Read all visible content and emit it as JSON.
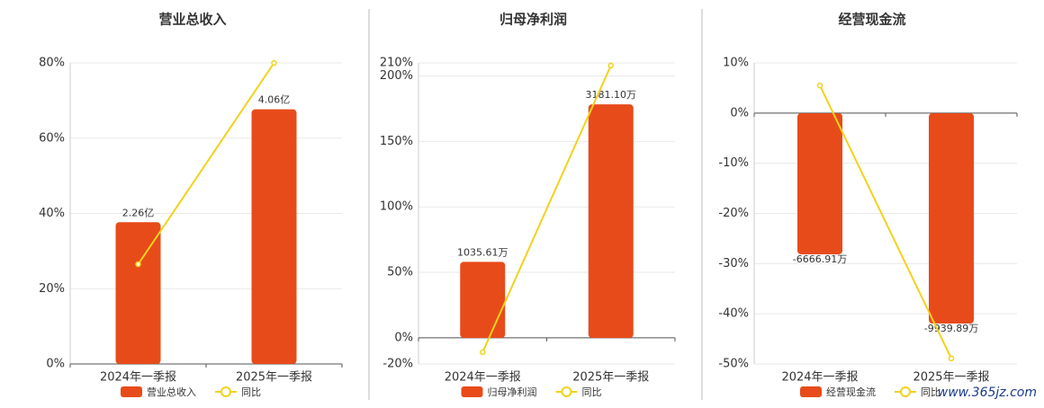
{
  "chart_data": [
    {
      "type": "bar",
      "title": "营业总收入",
      "categories": [
        "2024年一季报",
        "2025年一季报"
      ],
      "series": [
        {
          "name": "营业总收入",
          "type": "bar",
          "axis": "y2",
          "color": "#e84b1a",
          "values": [
            2.26,
            4.06
          ],
          "value_labels": [
            "2.26亿",
            "4.06亿"
          ]
        },
        {
          "name": "同比",
          "type": "line",
          "color": "#f2d21b",
          "values": [
            26.5,
            80
          ]
        }
      ],
      "ylim": [
        0,
        80
      ],
      "yticks": [
        {
          "value": 0,
          "label": "0%"
        },
        {
          "value": 20,
          "label": "20%"
        },
        {
          "value": 40,
          "label": "40%"
        },
        {
          "value": 60,
          "label": "60%"
        },
        {
          "value": 80,
          "label": "80%"
        }
      ],
      "y2lim": [
        0,
        4.8
      ],
      "grid": true
    },
    {
      "type": "bar",
      "title": "归母净利润",
      "categories": [
        "2024年一季报",
        "2025年一季报"
      ],
      "series": [
        {
          "name": "归母净利润",
          "type": "bar",
          "axis": "y2",
          "color": "#e84b1a",
          "values": [
            1035.61,
            3181.1
          ],
          "value_labels": [
            "1035.61万",
            "3181.10万"
          ]
        },
        {
          "name": "同比",
          "type": "line",
          "color": "#f2d21b",
          "values": [
            -11,
            208
          ]
        }
      ],
      "ylim": [
        -20,
        210
      ],
      "yticks": [
        {
          "value": -20,
          "label": "-20%"
        },
        {
          "value": 0,
          "label": "0%"
        },
        {
          "value": 50,
          "label": "50%"
        },
        {
          "value": 100,
          "label": "100%"
        },
        {
          "value": 150,
          "label": "150%"
        },
        {
          "value": 200,
          "label": "200%"
        },
        {
          "value": 210,
          "label": "210%"
        }
      ],
      "y2lim": [
        -355,
        3745
      ],
      "grid": true
    },
    {
      "type": "bar",
      "title": "经营现金流",
      "categories": [
        "2024年一季报",
        "2025年一季报"
      ],
      "series": [
        {
          "name": "经营现金流",
          "type": "bar",
          "axis": "y2",
          "color": "#e84b1a",
          "values": [
            -6666.91,
            -9939.89
          ],
          "value_labels": [
            "-6666.91万",
            "-9939.89万"
          ]
        },
        {
          "name": "同比",
          "type": "line",
          "color": "#f2d21b",
          "values": [
            5.5,
            -48.9
          ]
        }
      ],
      "ylim": [
        -50,
        10
      ],
      "yticks": [
        {
          "value": -50,
          "label": "-50%"
        },
        {
          "value": -40,
          "label": "-40%"
        },
        {
          "value": -30,
          "label": "-30%"
        },
        {
          "value": -20,
          "label": "-20%"
        },
        {
          "value": -10,
          "label": "-10%"
        },
        {
          "value": 0,
          "label": "0%"
        },
        {
          "value": 10,
          "label": "10%"
        }
      ],
      "y2lim": [
        -11852,
        2379
      ],
      "grid": true
    }
  ],
  "watermark": "www.365jz.com"
}
